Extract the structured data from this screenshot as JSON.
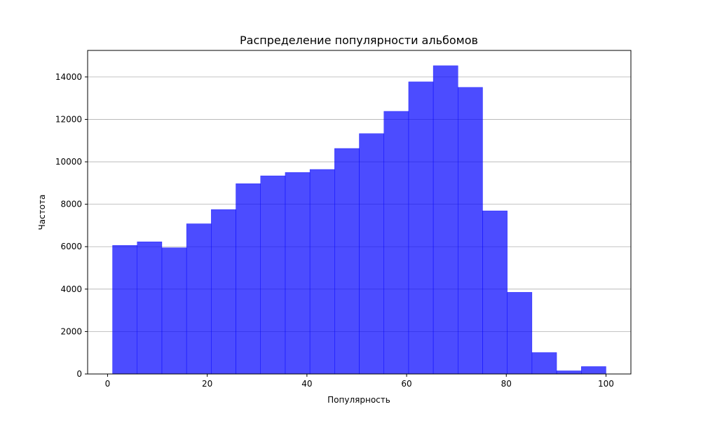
{
  "chart_data": {
    "type": "bar",
    "title": "Распределение популярности альбомов",
    "xlabel": "Популярность",
    "ylabel": "Частота",
    "xlim": [
      -4,
      105
    ],
    "ylim": [
      0,
      15250
    ],
    "x_ticks": [
      0,
      20,
      40,
      60,
      80,
      100
    ],
    "y_ticks": [
      0,
      2000,
      4000,
      6000,
      8000,
      10000,
      12000,
      14000
    ],
    "grid": "y",
    "bar_color": "#0000ff",
    "bar_opacity": 0.7,
    "bins": [
      {
        "x0": 1.0,
        "x1": 5.95,
        "value": 6060
      },
      {
        "x0": 5.95,
        "x1": 10.9,
        "value": 6230
      },
      {
        "x0": 10.9,
        "x1": 15.85,
        "value": 5950
      },
      {
        "x0": 15.85,
        "x1": 20.8,
        "value": 7080
      },
      {
        "x0": 20.8,
        "x1": 25.75,
        "value": 7750
      },
      {
        "x0": 25.75,
        "x1": 30.7,
        "value": 8970
      },
      {
        "x0": 30.7,
        "x1": 35.65,
        "value": 9340
      },
      {
        "x0": 35.65,
        "x1": 40.6,
        "value": 9500
      },
      {
        "x0": 40.6,
        "x1": 45.55,
        "value": 9640
      },
      {
        "x0": 45.55,
        "x1": 50.5,
        "value": 10630
      },
      {
        "x0": 50.5,
        "x1": 55.45,
        "value": 11330
      },
      {
        "x0": 55.45,
        "x1": 60.4,
        "value": 12380
      },
      {
        "x0": 60.4,
        "x1": 65.35,
        "value": 13770
      },
      {
        "x0": 65.35,
        "x1": 70.3,
        "value": 14530
      },
      {
        "x0": 70.3,
        "x1": 75.25,
        "value": 13510
      },
      {
        "x0": 75.25,
        "x1": 80.2,
        "value": 7690
      },
      {
        "x0": 80.2,
        "x1": 85.15,
        "value": 3850
      },
      {
        "x0": 85.15,
        "x1": 90.1,
        "value": 1010
      },
      {
        "x0": 90.1,
        "x1": 95.05,
        "value": 150
      },
      {
        "x0": 95.05,
        "x1": 100.0,
        "value": 350
      }
    ]
  }
}
